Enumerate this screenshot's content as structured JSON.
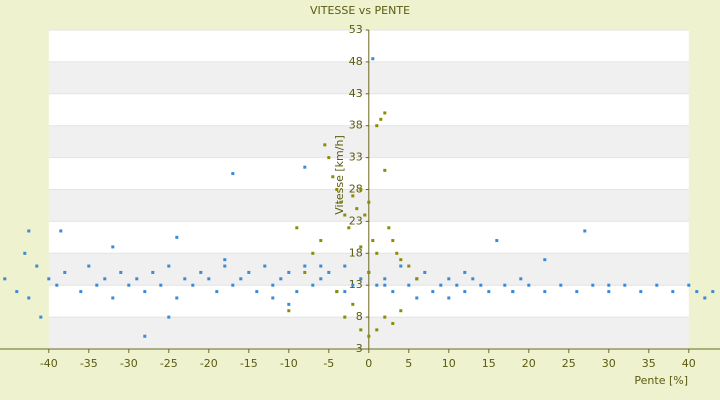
{
  "chart_data": {
    "type": "scatter",
    "title": "VITESSE vs PENTE",
    "x_label": "Pente [%]",
    "y_label": "Vitesse [km/h]",
    "xlim": [
      -46.1,
      43.9
    ],
    "ylim": [
      3,
      53
    ],
    "xticks": [
      -40,
      -35,
      -30,
      -25,
      -20,
      -15,
      -10,
      -5,
      0,
      5,
      10,
      15,
      20,
      25,
      30,
      35,
      40
    ],
    "yticks": [
      3,
      8,
      13,
      18,
      23,
      28,
      33,
      38,
      43,
      48,
      53
    ],
    "grid": true,
    "series": [
      {
        "color": "#3b8ad6",
        "x": [
          -45.5,
          -44,
          -43,
          -42.5,
          -42.5,
          -41.5,
          -41,
          -40,
          -39,
          -38.5,
          -38,
          -36,
          -35,
          -34,
          -33,
          -32,
          -32,
          -31,
          -30,
          -29,
          -28,
          -28,
          -27,
          -26,
          -25,
          -24,
          -24,
          -23,
          -22,
          -21,
          -20,
          -19,
          -18,
          -17,
          -17,
          -16,
          -15,
          -14,
          -13,
          -12,
          -11,
          -10,
          -9,
          -8,
          -8,
          -7,
          -6,
          -5,
          -4,
          -3,
          -2,
          -1,
          0,
          1,
          2,
          3,
          4,
          5,
          6,
          7,
          8,
          9,
          10,
          11,
          12,
          13,
          14,
          15,
          16,
          17,
          18,
          19,
          20,
          22,
          22,
          24,
          26,
          27,
          28,
          30,
          32,
          34,
          36,
          38,
          40,
          41,
          42,
          43,
          -18,
          -12,
          -6,
          -3,
          2,
          6,
          12,
          18,
          -25,
          -10,
          0.5,
          10,
          30
        ],
        "values": [
          14,
          12,
          18,
          21.5,
          11,
          16,
          8,
          14,
          13,
          21.5,
          15,
          12,
          16,
          13,
          14,
          19,
          11,
          15,
          13,
          14,
          5,
          12,
          15,
          13,
          16,
          20.5,
          11,
          14,
          13,
          15,
          14,
          12,
          16,
          30.5,
          13,
          14,
          15,
          12,
          16,
          13,
          14,
          15,
          12,
          31.5,
          16,
          13,
          14,
          15,
          12,
          16,
          13,
          14,
          15,
          13,
          14,
          12,
          16,
          13,
          14,
          15,
          12,
          13,
          14,
          13,
          12,
          14,
          13,
          12,
          20,
          13,
          12,
          14,
          13,
          17,
          12,
          13,
          12,
          21.5,
          13,
          12,
          13,
          12,
          13,
          12,
          13,
          12,
          11,
          12,
          17,
          11,
          16,
          12,
          13,
          11,
          15,
          12,
          8,
          10,
          48.5,
          11,
          13
        ]
      },
      {
        "color": "#8c8c00",
        "x": [
          -5.5,
          -5,
          -4.5,
          -4,
          -3.5,
          -3,
          -2.5,
          -2,
          -1.5,
          -1,
          -0.5,
          0,
          0.5,
          1,
          1.5,
          2,
          2,
          2.5,
          3,
          3.5,
          4,
          5,
          6,
          -6,
          -7,
          -8,
          -10,
          -3,
          -1,
          0,
          1,
          2,
          3,
          -2,
          -4,
          0,
          1,
          -1,
          -9,
          4
        ],
        "values": [
          35,
          33,
          30,
          28,
          26,
          24,
          22,
          27,
          25,
          28,
          24,
          26,
          20,
          38,
          39,
          40,
          31,
          22,
          20,
          18,
          17,
          16,
          14,
          20,
          18,
          15,
          9,
          8,
          6,
          5,
          6,
          8,
          7,
          10,
          12,
          15,
          18,
          19,
          22,
          9
        ]
      }
    ]
  }
}
